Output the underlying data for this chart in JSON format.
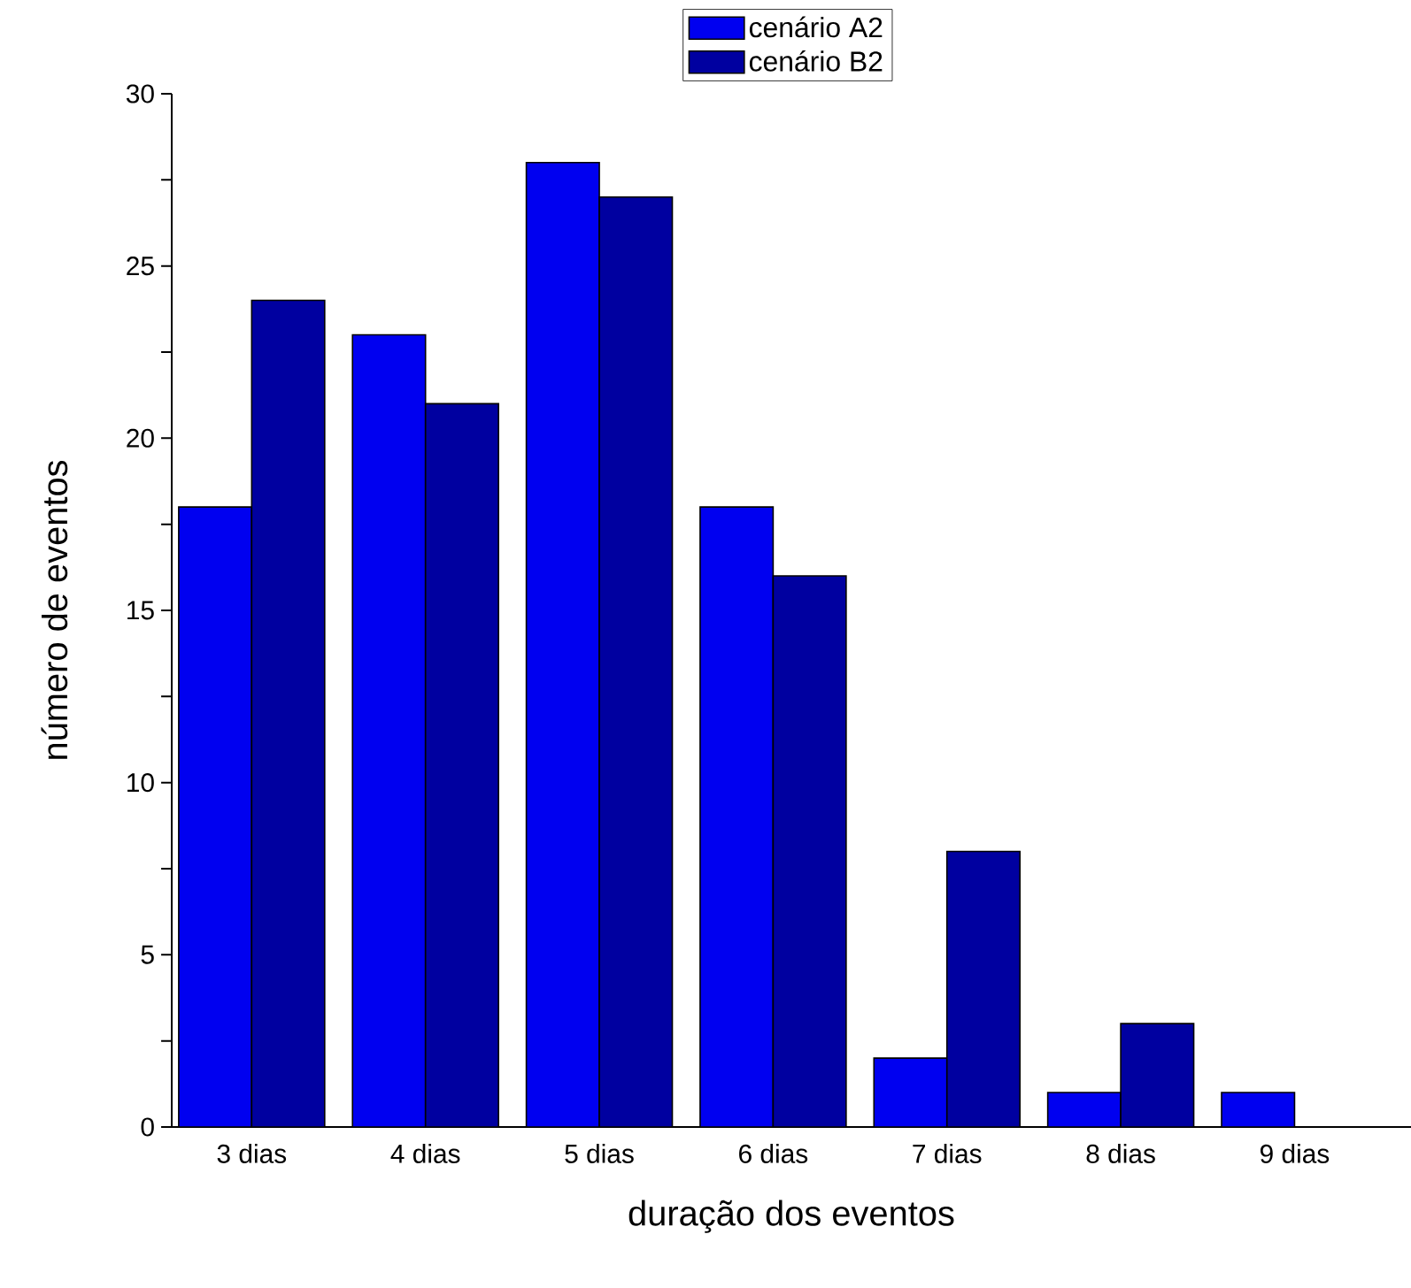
{
  "chart_data": {
    "type": "bar",
    "xlabel": "duração dos eventos",
    "ylabel": "número de eventos",
    "categories": [
      "3 dias",
      "4 dias",
      "5 dias",
      "6 dias",
      "7 dias",
      "8 dias",
      "9 dias"
    ],
    "series": [
      {
        "name": "cenário A2",
        "color": "#0000f0",
        "values": [
          18,
          23,
          28,
          18,
          2,
          1,
          1
        ]
      },
      {
        "name": "cenário B2",
        "color": "#0000a0",
        "values": [
          24,
          21,
          27,
          16,
          8,
          3,
          null
        ]
      }
    ],
    "ylim": [
      0,
      30
    ],
    "yticks": [
      0,
      {
        "value": 2.5,
        "label": null
      },
      5,
      {
        "value": 7.5,
        "label": null
      },
      10,
      {
        "value": 12.5,
        "label": null
      },
      15,
      {
        "value": 17.5,
        "label": null
      },
      20,
      {
        "value": 22.5,
        "label": null
      },
      25,
      {
        "value": 27.5,
        "label": null
      },
      30
    ],
    "legend": "top"
  }
}
